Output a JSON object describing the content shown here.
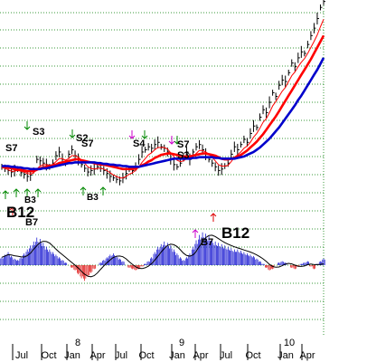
{
  "chart_data": {
    "type": "line",
    "x_axis": {
      "month_ticks": [
        "Jul",
        "Oct",
        "Jan",
        "Apr",
        "Jul",
        "Oct",
        "Jan",
        "Apr",
        "Jul",
        "Oct",
        "Jan",
        "Apr"
      ],
      "year_ticks": [
        "8",
        "9",
        "10"
      ]
    },
    "grid": "horizontal dotted green",
    "price_panel": {
      "series": [
        {
          "color": "#000000",
          "style": "ohlc-bars",
          "values": [
            195,
            193,
            190,
            188,
            190,
            192,
            187,
            185,
            182,
            184,
            190,
            205,
            203,
            200,
            198,
            195,
            200,
            210,
            215,
            205,
            200,
            212,
            218,
            210,
            205,
            198,
            193,
            188,
            190,
            192,
            195,
            193,
            190,
            186,
            182,
            180,
            178,
            176,
            180,
            186,
            192,
            190,
            195,
            205,
            215,
            218,
            222,
            220,
            225,
            228,
            222,
            220,
            215,
            205,
            198,
            195,
            200,
            208,
            215,
            205,
            215,
            222,
            225,
            218,
            212,
            205,
            200,
            195,
            190,
            192,
            196,
            200,
            212,
            222,
            218,
            225,
            232,
            228,
            240,
            250,
            248,
            262,
            272,
            268,
            282,
            295,
            290,
            305,
            312,
            310,
            322,
            335,
            330,
            342,
            350,
            348,
            360,
            372,
            382,
            395,
            410,
            418
          ]
        },
        {
          "color": "#ff0000",
          "style": "thin",
          "values": [
            194,
            193,
            191,
            189,
            189,
            190,
            189,
            188,
            186,
            185,
            187,
            192,
            196,
            198,
            198,
            197,
            198,
            202,
            206,
            206,
            204,
            206,
            210,
            210,
            208,
            204,
            200,
            195,
            193,
            192,
            193,
            193,
            192,
            190,
            187,
            184,
            182,
            180,
            180,
            182,
            185,
            187,
            190,
            195,
            201,
            206,
            211,
            214,
            218,
            221,
            221,
            221,
            219,
            214,
            209,
            204,
            202,
            203,
            206,
            206,
            209,
            213,
            217,
            217,
            215,
            212,
            208,
            203,
            198,
            196,
            196,
            197,
            202,
            208,
            211,
            215,
            220,
            223,
            228,
            235,
            240,
            247,
            255,
            260,
            268,
            277,
            283,
            290,
            297,
            302,
            310,
            318,
            323,
            330,
            336,
            341,
            348,
            356,
            364,
            373,
            384,
            394
          ]
        },
        {
          "color": "#ff0000",
          "style": "thick",
          "values": [
            195,
            195,
            194,
            193,
            192,
            191,
            191,
            190,
            189,
            189,
            189,
            191,
            193,
            194,
            195,
            196,
            197,
            198,
            200,
            201,
            202,
            203,
            204,
            205,
            205,
            204,
            203,
            202,
            201,
            200,
            199,
            198,
            198,
            197,
            196,
            195,
            194,
            193,
            192,
            192,
            192,
            192,
            193,
            195,
            197,
            199,
            202,
            204,
            207,
            209,
            211,
            212,
            213,
            213,
            212,
            211,
            210,
            209,
            209,
            209,
            210,
            211,
            212,
            213,
            213,
            212,
            211,
            210,
            208,
            206,
            205,
            205,
            206,
            207,
            209,
            211,
            214,
            217,
            221,
            225,
            229,
            234,
            239,
            245,
            251,
            257,
            263,
            270,
            277,
            284,
            291,
            298,
            305,
            312,
            319,
            326,
            333,
            340,
            348,
            356,
            364,
            372
          ]
        },
        {
          "color": "#0000cc",
          "style": "thick",
          "values": [
            196,
            196,
            196,
            195,
            195,
            194,
            194,
            193,
            193,
            192,
            192,
            192,
            192,
            193,
            193,
            194,
            195,
            196,
            197,
            198,
            199,
            200,
            200,
            201,
            201,
            201,
            201,
            201,
            201,
            201,
            200,
            200,
            199,
            199,
            198,
            198,
            197,
            197,
            196,
            196,
            195,
            195,
            195,
            195,
            196,
            197,
            198,
            199,
            200,
            201,
            202,
            203,
            204,
            205,
            206,
            206,
            206,
            206,
            206,
            206,
            207,
            207,
            208,
            208,
            208,
            208,
            208,
            207,
            207,
            206,
            206,
            206,
            206,
            206,
            207,
            208,
            209,
            211,
            213,
            215,
            218,
            221,
            225,
            229,
            233,
            238,
            243,
            248,
            254,
            260,
            266,
            272,
            278,
            285,
            291,
            298,
            305,
            312,
            319,
            326,
            334,
            342
          ]
        }
      ],
      "ylim": [
        160,
        420
      ]
    },
    "signals": {
      "buy": [
        "B3",
        "B7",
        "B12",
        "B7",
        "B3",
        "B12"
      ],
      "sell": [
        "S7",
        "S3",
        "S2",
        "S7",
        "S4",
        "S7",
        "S3"
      ]
    },
    "oscillator_panel": {
      "type": "histogram",
      "values": [
        6,
        8,
        10,
        7,
        5,
        4,
        6,
        9,
        12,
        15,
        18,
        21,
        20,
        17,
        14,
        12,
        10,
        8,
        6,
        4,
        2,
        0,
        -2,
        -4,
        -7,
        -10,
        -12,
        -9,
        -6,
        -3,
        0,
        2,
        4,
        6,
        8,
        9,
        7,
        5,
        3,
        0,
        -2,
        -3,
        -4,
        -3,
        -1,
        1,
        3,
        6,
        10,
        14,
        16,
        18,
        17,
        15,
        12,
        9,
        6,
        4,
        6,
        9,
        14,
        19,
        23,
        25,
        24,
        22,
        20,
        18,
        17,
        16,
        15,
        14,
        13,
        12,
        12,
        11,
        10,
        9,
        8,
        7,
        5,
        3,
        1,
        -2,
        -4,
        -3,
        0,
        2,
        3,
        2,
        0,
        -2,
        -3,
        -1,
        1,
        2,
        3,
        -1,
        -3,
        1,
        3,
        5
      ],
      "ylim": [
        -25,
        30
      ],
      "baseline": 0
    }
  }
}
